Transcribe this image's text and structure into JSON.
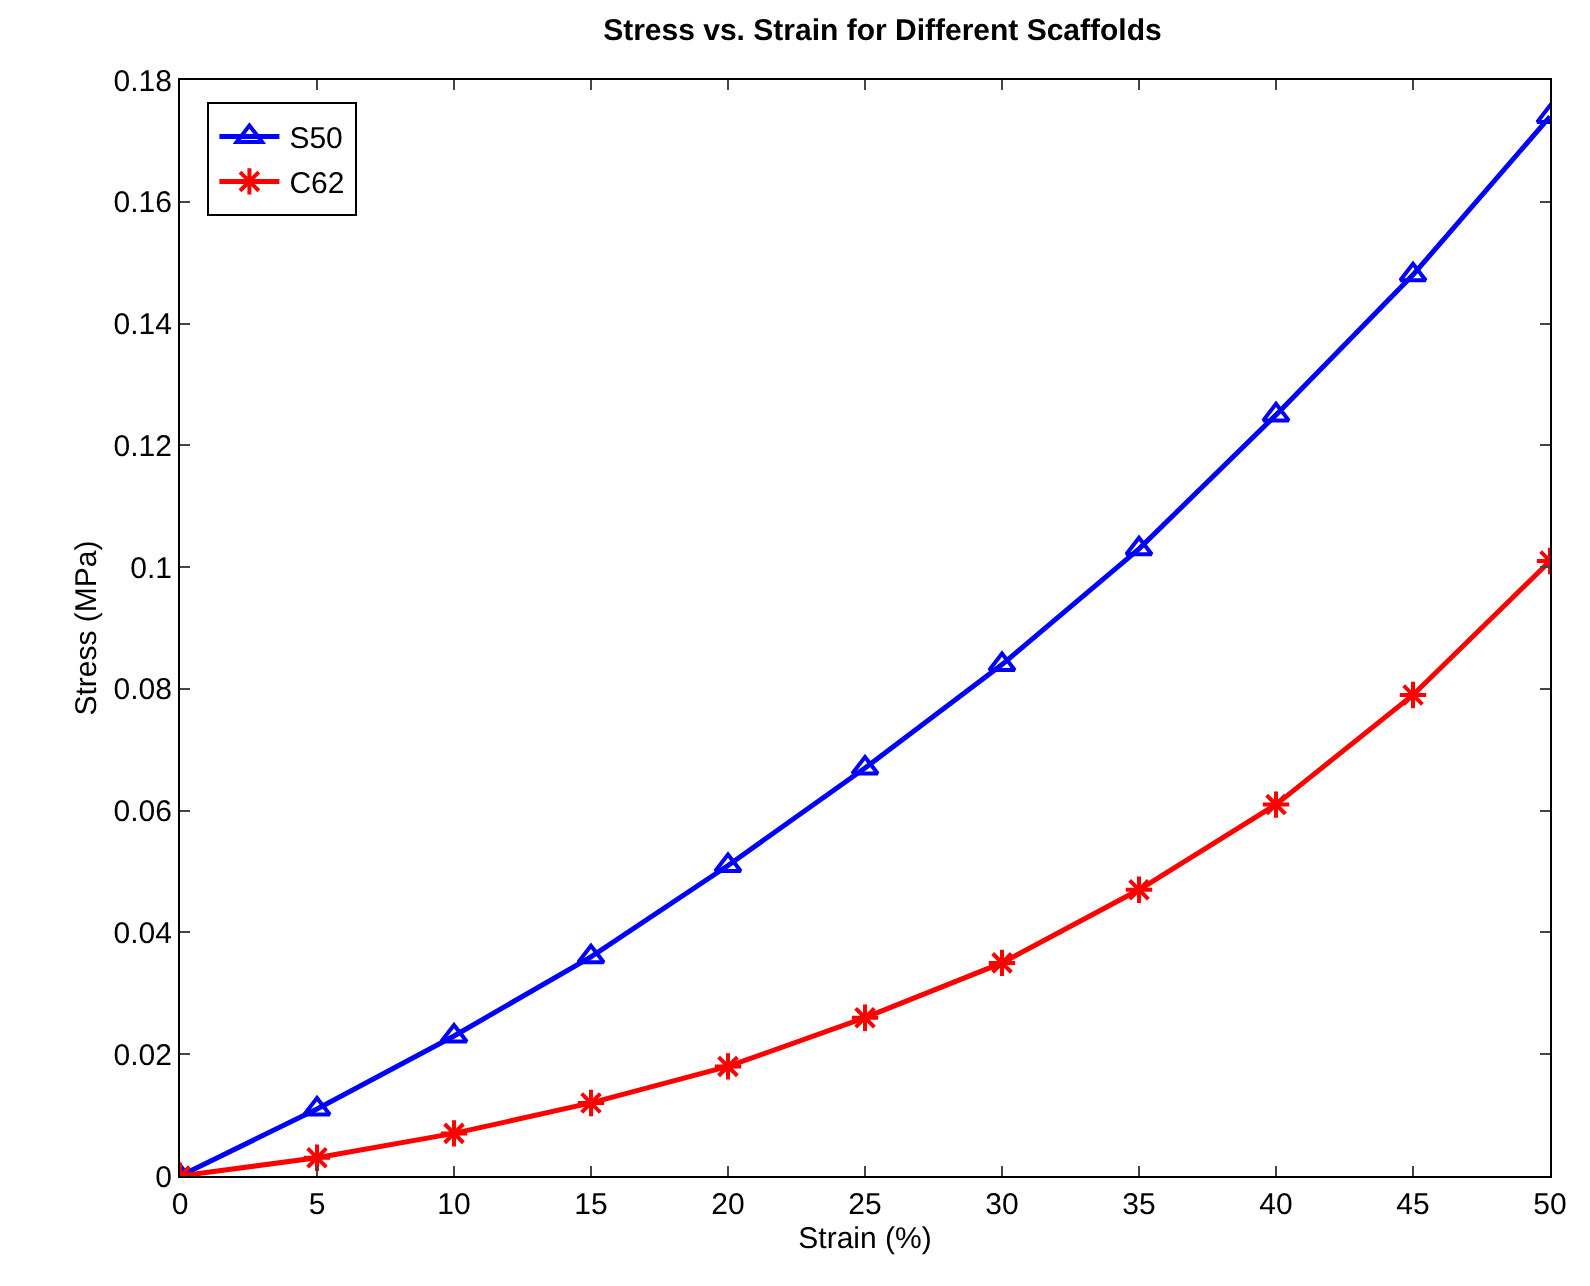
{
  "chart_data": {
    "type": "line",
    "title": "Stress vs. Strain for Different Scaffolds",
    "xlabel": "Strain (%)",
    "ylabel": "Stress (MPa)",
    "x": [
      0,
      5,
      10,
      15,
      20,
      25,
      30,
      35,
      40,
      45,
      50
    ],
    "series": [
      {
        "name": "S50",
        "color": "#0000ff",
        "marker": "triangle",
        "values": [
          0,
          0.011,
          0.023,
          0.036,
          0.051,
          0.067,
          0.084,
          0.103,
          0.125,
          0.148,
          0.174
        ]
      },
      {
        "name": "C62",
        "color": "#ff0000",
        "marker": "cross",
        "values": [
          0,
          0.003,
          0.007,
          0.012,
          0.018,
          0.026,
          0.035,
          0.047,
          0.061,
          0.079,
          0.101
        ]
      }
    ],
    "xlim": [
      0,
      50
    ],
    "xticks": [
      0,
      5,
      10,
      15,
      20,
      25,
      30,
      35,
      40,
      45,
      50
    ],
    "ylim": [
      0,
      0.18
    ],
    "yticks": [
      0,
      0.02,
      0.04,
      0.06,
      0.08,
      0.1,
      0.12,
      0.14,
      0.16,
      0.18
    ],
    "legend": "top left",
    "line_style": "solid"
  }
}
